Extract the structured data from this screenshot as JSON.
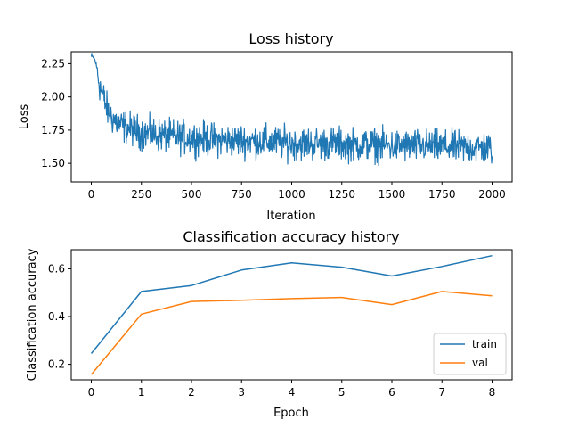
{
  "chart_data": [
    {
      "type": "line",
      "title": "Loss history",
      "xlabel": "Iteration",
      "ylabel": "Loss",
      "xlim": [
        -100,
        2100
      ],
      "ylim": [
        1.36,
        2.34
      ],
      "xticks": [
        0,
        250,
        500,
        750,
        1000,
        1250,
        1500,
        1750,
        2000
      ],
      "yticks": [
        1.5,
        1.75,
        2.0,
        2.25
      ],
      "ytick_labels": [
        "1.50",
        "1.75",
        "2.00",
        "2.25"
      ],
      "grid": false,
      "series": [
        {
          "color": "#1f77b4",
          "x": [
            0,
            10,
            20,
            30,
            40,
            50,
            60,
            70,
            80,
            100,
            120,
            150,
            200,
            250,
            300,
            400,
            500,
            600,
            700,
            800,
            900,
            1000,
            1100,
            1200,
            1300,
            1400,
            1500,
            1600,
            1700,
            1800,
            1900,
            2000
          ],
          "y": [
            2.3,
            2.3,
            2.27,
            2.2,
            2.1,
            2.05,
            2.0,
            1.95,
            1.9,
            1.85,
            1.82,
            1.78,
            1.76,
            1.73,
            1.72,
            1.7,
            1.69,
            1.68,
            1.67,
            1.67,
            1.66,
            1.65,
            1.65,
            1.65,
            1.64,
            1.64,
            1.63,
            1.63,
            1.63,
            1.62,
            1.62,
            1.61
          ],
          "noise_amplitude": 0.09,
          "notes_visible": "noisy per-iteration curve; values are approximate local means"
        }
      ]
    },
    {
      "type": "line",
      "title": "Classification accuracy history",
      "xlabel": "Epoch",
      "ylabel": "Classification accuracy",
      "xlim": [
        -0.4,
        8.4
      ],
      "ylim": [
        0.135,
        0.68
      ],
      "xticks": [
        0,
        1,
        2,
        3,
        4,
        5,
        6,
        7,
        8
      ],
      "yticks": [
        0.2,
        0.4,
        0.6
      ],
      "ytick_labels": [
        "0.2",
        "0.4",
        "0.6"
      ],
      "grid": false,
      "legend": "lower-right",
      "x": [
        0,
        1,
        2,
        3,
        4,
        5,
        6,
        7,
        8
      ],
      "series": [
        {
          "name": "train",
          "color": "#1f77b4",
          "values": [
            0.245,
            0.505,
            0.53,
            0.595,
            0.625,
            0.607,
            0.57,
            0.61,
            0.655
          ]
        },
        {
          "name": "val",
          "color": "#ff7f0e",
          "values": [
            0.157,
            0.41,
            0.463,
            0.468,
            0.475,
            0.48,
            0.45,
            0.505,
            0.487
          ]
        }
      ]
    }
  ]
}
